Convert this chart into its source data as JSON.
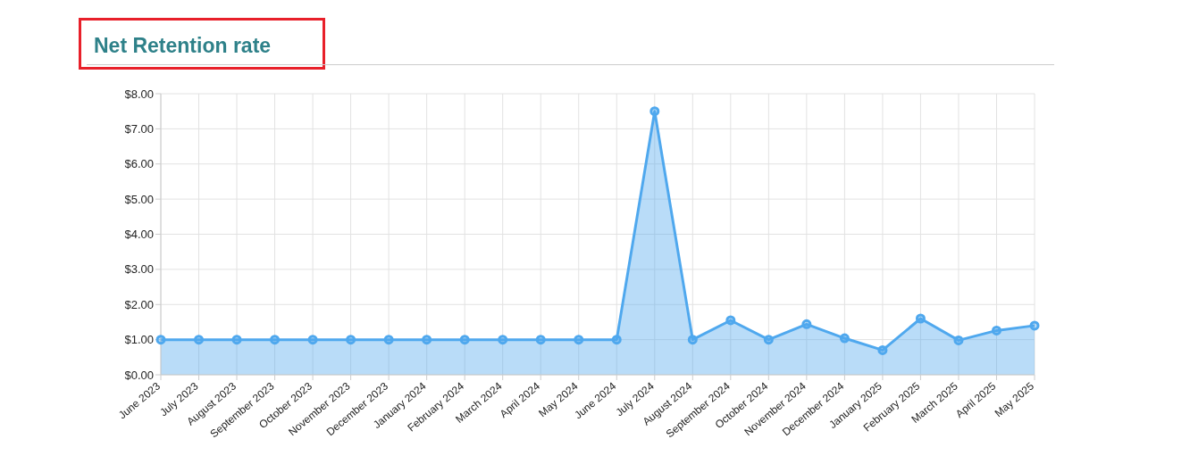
{
  "chart_data": {
    "type": "area",
    "title": "Net Retention rate",
    "categories": [
      "June 2023",
      "July 2023",
      "August 2023",
      "September 2023",
      "October 2023",
      "November 2023",
      "December 2023",
      "January 2024",
      "February 2024",
      "March 2024",
      "April 2024",
      "May 2024",
      "June 2024",
      "July 2024",
      "August 2024",
      "September 2024",
      "October 2024",
      "November 2024",
      "December 2024",
      "January 2025",
      "February 2025",
      "March 2025",
      "April 2025",
      "May 2025"
    ],
    "series": [
      {
        "color": "#4fa8ee",
        "values": [
          1,
          1,
          1,
          1,
          1,
          1,
          1,
          1,
          1,
          1,
          1,
          1,
          1,
          7.5,
          1,
          1.55,
          1,
          1.44,
          1.04,
          0.7,
          1.6,
          0.98,
          1.26,
          1.4
        ]
      }
    ],
    "ylim": [
      0,
      8
    ],
    "yticks": [
      {
        "value": 0,
        "label": "$0.00"
      },
      {
        "value": 1,
        "label": "$1.00"
      },
      {
        "value": 2,
        "label": "$2.00"
      },
      {
        "value": 3,
        "label": "$3.00"
      },
      {
        "value": 4,
        "label": "$4.00"
      },
      {
        "value": 5,
        "label": "$5.00"
      },
      {
        "value": 6,
        "label": "$6.00"
      },
      {
        "value": 7,
        "label": "$7.00"
      },
      {
        "value": 8,
        "label": "$8.00"
      }
    ],
    "grid": true,
    "marker": "circle"
  }
}
